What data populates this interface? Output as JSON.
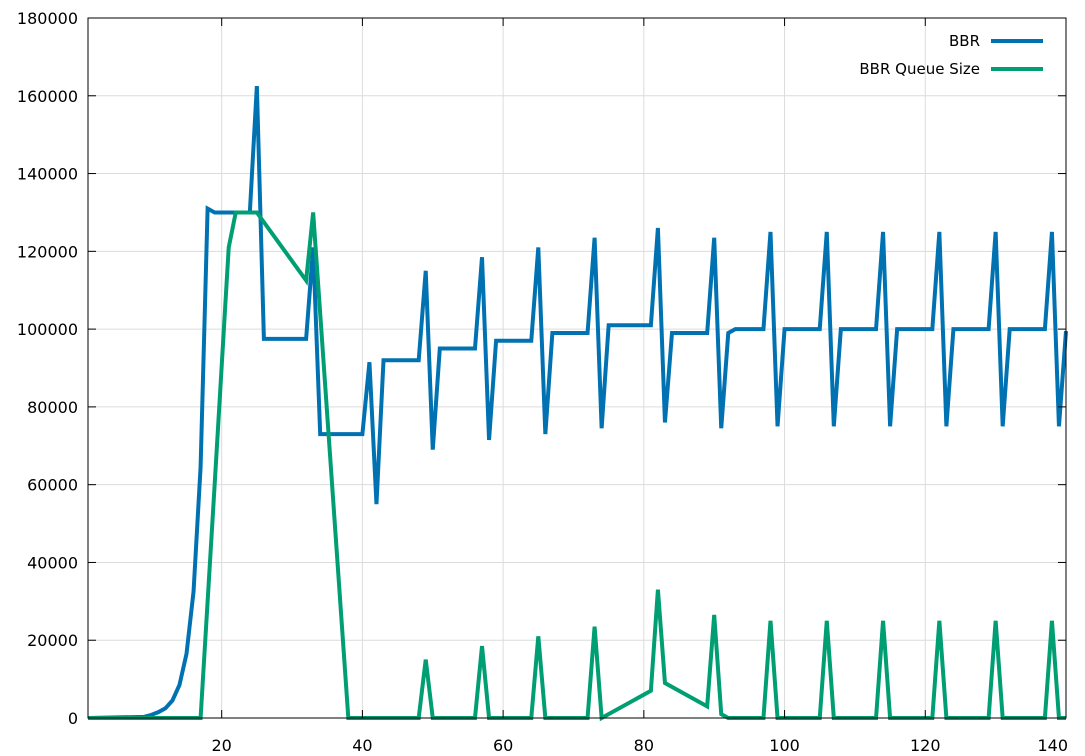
{
  "chart_data": {
    "type": "line",
    "title": "",
    "xlabel": "",
    "ylabel": "",
    "xlim": [
      1,
      140
    ],
    "ylim": [
      0,
      180000
    ],
    "x_ticks": [
      20,
      40,
      60,
      80,
      100,
      120,
      140
    ],
    "y_ticks": [
      0,
      20000,
      40000,
      60000,
      80000,
      100000,
      120000,
      140000,
      160000,
      180000
    ],
    "grid": true,
    "legend_position": "top-right",
    "series": [
      {
        "name": "BBR",
        "color": "#0072B2",
        "points": [
          [
            1,
            0
          ],
          [
            9,
            300
          ],
          [
            10,
            800
          ],
          [
            11,
            1500
          ],
          [
            12,
            2500
          ],
          [
            13,
            4500
          ],
          [
            14,
            8500
          ],
          [
            15,
            16500
          ],
          [
            16,
            32500
          ],
          [
            17,
            64500
          ],
          [
            18,
            131000
          ],
          [
            19,
            130000
          ],
          [
            24,
            130000
          ],
          [
            25,
            162500
          ],
          [
            26,
            97500
          ],
          [
            32,
            97500
          ],
          [
            33,
            121000
          ],
          [
            34,
            73000
          ],
          [
            40,
            73000
          ],
          [
            41,
            91500
          ],
          [
            42,
            55000
          ],
          [
            43,
            92000
          ],
          [
            48,
            92000
          ],
          [
            49,
            115000
          ],
          [
            50,
            69000
          ],
          [
            51,
            95000
          ],
          [
            56,
            95000
          ],
          [
            57,
            118500
          ],
          [
            58,
            71500
          ],
          [
            59,
            97000
          ],
          [
            64,
            97000
          ],
          [
            65,
            121000
          ],
          [
            66,
            73000
          ],
          [
            67,
            99000
          ],
          [
            72,
            99000
          ],
          [
            73,
            123500
          ],
          [
            74,
            74500
          ],
          [
            75,
            101000
          ],
          [
            81,
            101000
          ],
          [
            82,
            126000
          ],
          [
            83,
            76000
          ],
          [
            84,
            99000
          ],
          [
            89,
            99000
          ],
          [
            90,
            123500
          ],
          [
            91,
            74500
          ],
          [
            92,
            99000
          ],
          [
            93,
            100000
          ],
          [
            97,
            100000
          ],
          [
            98,
            125000
          ],
          [
            99,
            75000
          ],
          [
            100,
            100000
          ],
          [
            105,
            100000
          ],
          [
            106,
            125000
          ],
          [
            107,
            75000
          ],
          [
            108,
            100000
          ],
          [
            113,
            100000
          ],
          [
            114,
            125000
          ],
          [
            115,
            75000
          ],
          [
            116,
            100000
          ],
          [
            121,
            100000
          ],
          [
            122,
            125000
          ],
          [
            123,
            75000
          ],
          [
            124,
            100000
          ],
          [
            129,
            100000
          ],
          [
            130,
            125000
          ],
          [
            131,
            75000
          ],
          [
            132,
            100000
          ],
          [
            137,
            100000
          ],
          [
            138,
            125000
          ],
          [
            139,
            75000
          ],
          [
            140,
            99500
          ]
        ]
      },
      {
        "name": "BBR Queue Size",
        "color": "#009E73",
        "points": [
          [
            1,
            0
          ],
          [
            17,
            0
          ],
          [
            19,
            60000
          ],
          [
            21,
            121000
          ],
          [
            22,
            130000
          ],
          [
            25,
            130000
          ],
          [
            32,
            112500
          ],
          [
            33,
            130000
          ],
          [
            38,
            0
          ],
          [
            48,
            0
          ],
          [
            49,
            15000
          ],
          [
            50,
            0
          ],
          [
            56,
            0
          ],
          [
            57,
            18500
          ],
          [
            58,
            0
          ],
          [
            64,
            0
          ],
          [
            65,
            21000
          ],
          [
            66,
            0
          ],
          [
            72,
            0
          ],
          [
            73,
            23500
          ],
          [
            74,
            0
          ],
          [
            81,
            7000
          ],
          [
            82,
            33000
          ],
          [
            83,
            9000
          ],
          [
            89,
            3000
          ],
          [
            90,
            26500
          ],
          [
            91,
            1000
          ],
          [
            92,
            0
          ],
          [
            97,
            0
          ],
          [
            98,
            25000
          ],
          [
            99,
            0
          ],
          [
            105,
            0
          ],
          [
            106,
            25000
          ],
          [
            107,
            0
          ],
          [
            113,
            0
          ],
          [
            114,
            25000
          ],
          [
            115,
            0
          ],
          [
            121,
            0
          ],
          [
            122,
            25000
          ],
          [
            123,
            0
          ],
          [
            129,
            0
          ],
          [
            130,
            25000
          ],
          [
            131,
            0
          ],
          [
            137,
            0
          ],
          [
            138,
            25000
          ],
          [
            139,
            0
          ],
          [
            140,
            0
          ]
        ]
      }
    ]
  }
}
